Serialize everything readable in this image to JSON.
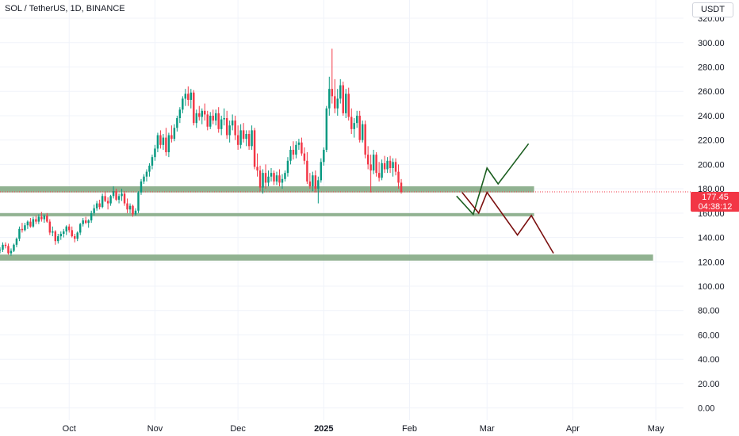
{
  "header": {
    "symbol": "SOL / TetherUS, 1D, BINANCE",
    "currency": "USDT"
  },
  "last_price": {
    "value": "177.45",
    "countdown": "04:38:12"
  },
  "colors": {
    "up": "#089981",
    "down": "#f23645",
    "zone": "#7ea57e",
    "bull_path": "#1b5e20",
    "bear_path": "#7b1010",
    "grid": "#f0f3fa",
    "price_line": "#f23645"
  },
  "chart_data": {
    "type": "candlestick",
    "xlabel": "",
    "ylabel": "",
    "ylim": [
      -10,
      335
    ],
    "y_ticks": [
      "320.00",
      "300.00",
      "280.00",
      "260.00",
      "240.00",
      "220.00",
      "200.00",
      "180.00",
      "160.00",
      "140.00",
      "120.00",
      "100.00",
      "80.00",
      "60.00",
      "40.00",
      "20.00",
      "0.00"
    ],
    "x_ticks": [
      {
        "label": "Oct",
        "date": "2024-10-01"
      },
      {
        "label": "Nov",
        "date": "2024-11-01"
      },
      {
        "label": "Dec",
        "date": "2024-12-01"
      },
      {
        "label": "2025",
        "date": "2025-01-01",
        "bold": true
      },
      {
        "label": "Feb",
        "date": "2025-02-01"
      },
      {
        "label": "Mar",
        "date": "2025-03-01"
      },
      {
        "label": "Apr",
        "date": "2025-04-01"
      },
      {
        "label": "May",
        "date": "2025-05-01"
      }
    ],
    "x_range": [
      "2024-09-06",
      "2025-05-11"
    ],
    "grid": true,
    "candles_start": "2024-09-06",
    "candles": [
      [
        130,
        132,
        127,
        130
      ],
      [
        130,
        136,
        128,
        134
      ],
      [
        134,
        136,
        131,
        133
      ],
      [
        133,
        135,
        126,
        127
      ],
      [
        127,
        131,
        125,
        129
      ],
      [
        129,
        135,
        128,
        134
      ],
      [
        134,
        140,
        132,
        139
      ],
      [
        139,
        149,
        137,
        147
      ],
      [
        147,
        152,
        144,
        146
      ],
      [
        146,
        152,
        145,
        150
      ],
      [
        150,
        154,
        147,
        153
      ],
      [
        153,
        156,
        148,
        149
      ],
      [
        149,
        157,
        148,
        155
      ],
      [
        155,
        158,
        151,
        153
      ],
      [
        153,
        159,
        151,
        157
      ],
      [
        157,
        161,
        153,
        155
      ],
      [
        155,
        159,
        152,
        158
      ],
      [
        158,
        160,
        152,
        153
      ],
      [
        153,
        155,
        142,
        144
      ],
      [
        144,
        149,
        141,
        145
      ],
      [
        145,
        146,
        134,
        137
      ],
      [
        137,
        143,
        135,
        141
      ],
      [
        141,
        145,
        138,
        143
      ],
      [
        143,
        147,
        140,
        145
      ],
      [
        145,
        150,
        142,
        149
      ],
      [
        149,
        151,
        144,
        146
      ],
      [
        146,
        149,
        140,
        141
      ],
      [
        141,
        143,
        136,
        139
      ],
      [
        139,
        145,
        137,
        144
      ],
      [
        144,
        152,
        142,
        151
      ],
      [
        151,
        156,
        149,
        154
      ],
      [
        154,
        157,
        151,
        152
      ],
      [
        152,
        155,
        148,
        154
      ],
      [
        154,
        162,
        152,
        160
      ],
      [
        160,
        167,
        158,
        164
      ],
      [
        164,
        170,
        162,
        168
      ],
      [
        168,
        171,
        163,
        165
      ],
      [
        165,
        176,
        164,
        174
      ],
      [
        174,
        178,
        169,
        170
      ],
      [
        170,
        173,
        163,
        168
      ],
      [
        168,
        175,
        166,
        174
      ],
      [
        174,
        182,
        172,
        178
      ],
      [
        178,
        180,
        170,
        171
      ],
      [
        171,
        176,
        168,
        174
      ],
      [
        174,
        180,
        170,
        176
      ],
      [
        176,
        178,
        166,
        168
      ],
      [
        168,
        172,
        160,
        163
      ],
      [
        163,
        168,
        160,
        166
      ],
      [
        166,
        167,
        157,
        159
      ],
      [
        159,
        164,
        158,
        162
      ],
      [
        162,
        178,
        160,
        177
      ],
      [
        177,
        188,
        175,
        186
      ],
      [
        186,
        192,
        184,
        190
      ],
      [
        190,
        196,
        186,
        194
      ],
      [
        194,
        201,
        190,
        199
      ],
      [
        199,
        208,
        196,
        206
      ],
      [
        206,
        216,
        203,
        213
      ],
      [
        213,
        226,
        210,
        224
      ],
      [
        224,
        228,
        213,
        216
      ],
      [
        216,
        225,
        212,
        222
      ],
      [
        222,
        230,
        207,
        210
      ],
      [
        210,
        226,
        206,
        224
      ],
      [
        224,
        232,
        218,
        221
      ],
      [
        221,
        233,
        219,
        230
      ],
      [
        230,
        240,
        227,
        238
      ],
      [
        238,
        247,
        234,
        245
      ],
      [
        245,
        256,
        242,
        254
      ],
      [
        254,
        262,
        248,
        258
      ],
      [
        258,
        264,
        248,
        253
      ],
      [
        253,
        262,
        246,
        259
      ],
      [
        259,
        261,
        232,
        234
      ],
      [
        234,
        245,
        230,
        242
      ],
      [
        242,
        248,
        236,
        239
      ],
      [
        239,
        246,
        233,
        244
      ],
      [
        244,
        250,
        236,
        241
      ],
      [
        241,
        244,
        228,
        231
      ],
      [
        231,
        243,
        229,
        240
      ],
      [
        240,
        245,
        233,
        236
      ],
      [
        236,
        245,
        232,
        242
      ],
      [
        242,
        247,
        226,
        229
      ],
      [
        229,
        240,
        224,
        237
      ],
      [
        237,
        246,
        232,
        238
      ],
      [
        238,
        244,
        221,
        224
      ],
      [
        224,
        236,
        218,
        232
      ],
      [
        232,
        241,
        228,
        236
      ],
      [
        236,
        240,
        220,
        224
      ],
      [
        224,
        232,
        212,
        216
      ],
      [
        216,
        233,
        213,
        228
      ],
      [
        228,
        234,
        218,
        221
      ],
      [
        221,
        228,
        215,
        225
      ],
      [
        225,
        228,
        212,
        215
      ],
      [
        215,
        232,
        212,
        228
      ],
      [
        228,
        230,
        196,
        198
      ],
      [
        198,
        209,
        190,
        195
      ],
      [
        195,
        199,
        178,
        181
      ],
      [
        181,
        196,
        176,
        193
      ],
      [
        193,
        200,
        180,
        185
      ],
      [
        185,
        195,
        182,
        190
      ],
      [
        190,
        197,
        186,
        193
      ],
      [
        193,
        195,
        183,
        186
      ],
      [
        186,
        194,
        183,
        191
      ],
      [
        191,
        196,
        182,
        185
      ],
      [
        185,
        192,
        180,
        188
      ],
      [
        188,
        195,
        186,
        193
      ],
      [
        193,
        206,
        190,
        203
      ],
      [
        203,
        215,
        200,
        212
      ],
      [
        212,
        219,
        204,
        208
      ],
      [
        208,
        219,
        205,
        216
      ],
      [
        216,
        221,
        212,
        218
      ],
      [
        218,
        222,
        207,
        209
      ],
      [
        209,
        214,
        200,
        203
      ],
      [
        203,
        210,
        184,
        186
      ],
      [
        186,
        193,
        180,
        182
      ],
      [
        182,
        194,
        178,
        191
      ],
      [
        191,
        195,
        177,
        180
      ],
      [
        180,
        190,
        168,
        187
      ],
      [
        187,
        205,
        185,
        202
      ],
      [
        202,
        214,
        199,
        212
      ],
      [
        212,
        248,
        210,
        246
      ],
      [
        246,
        272,
        240,
        262
      ],
      [
        262,
        295,
        250,
        256
      ],
      [
        256,
        270,
        242,
        246
      ],
      [
        246,
        262,
        240,
        254
      ],
      [
        254,
        270,
        250,
        265
      ],
      [
        265,
        268,
        240,
        242
      ],
      [
        242,
        262,
        238,
        258
      ],
      [
        258,
        263,
        236,
        239
      ],
      [
        239,
        246,
        225,
        229
      ],
      [
        229,
        238,
        222,
        234
      ],
      [
        234,
        244,
        230,
        240
      ],
      [
        240,
        244,
        218,
        220
      ],
      [
        220,
        236,
        218,
        233
      ],
      [
        233,
        236,
        205,
        208
      ],
      [
        208,
        215,
        196,
        200
      ],
      [
        200,
        208,
        177,
        195
      ],
      [
        195,
        212,
        192,
        208
      ],
      [
        208,
        210,
        190,
        193
      ],
      [
        193,
        202,
        186,
        189
      ],
      [
        189,
        204,
        187,
        201
      ],
      [
        201,
        207,
        193,
        196
      ],
      [
        196,
        206,
        193,
        203
      ],
      [
        203,
        207,
        193,
        197
      ],
      [
        197,
        205,
        190,
        202
      ],
      [
        202,
        205,
        191,
        194
      ],
      [
        194,
        200,
        180,
        185
      ],
      [
        185,
        188,
        176,
        177.45
      ]
    ],
    "zones": [
      {
        "low": 177,
        "high": 182,
        "from": "2024-09-06",
        "to": "2025-03-18"
      },
      {
        "low": 158,
        "high": 160,
        "from": "2024-09-06",
        "to": "2025-03-18"
      },
      {
        "low": 121,
        "high": 126,
        "from": "2024-09-06",
        "to": "2025-04-30"
      }
    ],
    "projection_bullish": [
      {
        "date": "2025-02-18",
        "price": 174
      },
      {
        "date": "2025-02-24",
        "price": 159
      },
      {
        "date": "2025-03-01",
        "price": 197
      },
      {
        "date": "2025-03-05",
        "price": 184
      },
      {
        "date": "2025-03-16",
        "price": 217
      }
    ],
    "projection_bearish": [
      {
        "date": "2025-02-20",
        "price": 177
      },
      {
        "date": "2025-02-26",
        "price": 160
      },
      {
        "date": "2025-03-01",
        "price": 177
      },
      {
        "date": "2025-03-12",
        "price": 142
      },
      {
        "date": "2025-03-17",
        "price": 158
      },
      {
        "date": "2025-03-25",
        "price": 127
      }
    ],
    "last_price": 177.45
  }
}
